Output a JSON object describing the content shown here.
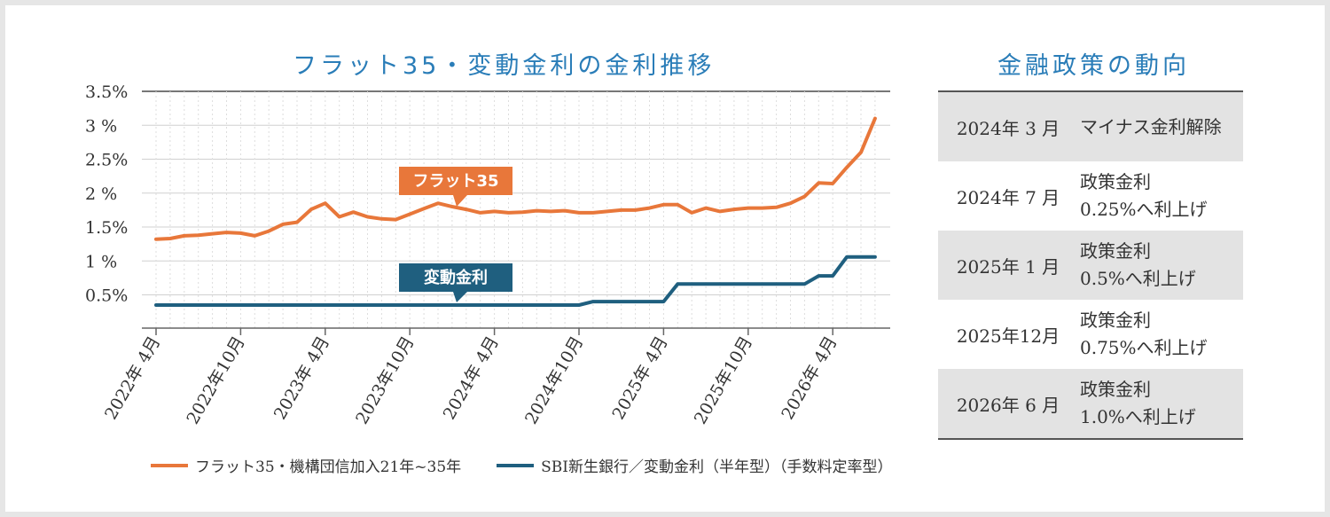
{
  "colors": {
    "flat35": "#e8773a",
    "variable": "#1f5f7f",
    "title": "#2a7db8"
  },
  "chart_data": {
    "type": "line",
    "title": "フラット35・変動金利の金利推移",
    "y_tick_labels": [
      "3.5%",
      "3 %",
      "2.5%",
      "2 %",
      "1.5%",
      "1 %",
      "0.5%"
    ],
    "y_tick_values": [
      3.5,
      3.0,
      2.5,
      2.0,
      1.5,
      1.0,
      0.5
    ],
    "ylim": [
      0.0,
      3.5
    ],
    "x_tick_labels": [
      "2022年 4月",
      "2022年10月",
      "2023年 4月",
      "2023年10月",
      "2024年 4月",
      "2024年10月",
      "2025年 4月",
      "2025年10月",
      "2026年 4月"
    ],
    "grid": true,
    "legend_position": "bottom",
    "x_months": [
      "2022-04",
      "2022-05",
      "2022-06",
      "2022-07",
      "2022-08",
      "2022-09",
      "2022-10",
      "2022-11",
      "2022-12",
      "2023-01",
      "2023-02",
      "2023-03",
      "2023-04",
      "2023-05",
      "2023-06",
      "2023-07",
      "2023-08",
      "2023-09",
      "2023-10",
      "2023-11",
      "2023-12",
      "2024-01",
      "2024-02",
      "2024-03",
      "2024-04",
      "2024-05",
      "2024-06",
      "2024-07",
      "2024-08",
      "2024-09",
      "2024-10",
      "2024-11",
      "2024-12",
      "2025-01",
      "2025-02",
      "2025-03",
      "2025-04",
      "2025-05",
      "2025-06",
      "2025-07",
      "2025-08",
      "2025-09",
      "2025-10",
      "2025-11",
      "2025-12",
      "2026-01",
      "2026-02",
      "2026-03",
      "2026-04",
      "2026-05",
      "2026-06",
      "2026-07"
    ],
    "series": [
      {
        "name": "フラット35・機構団信加入21年~35年",
        "callout": "フラット35",
        "color": "#e8773a",
        "values": [
          1.32,
          1.33,
          1.37,
          1.38,
          1.4,
          1.42,
          1.41,
          1.37,
          1.44,
          1.54,
          1.57,
          1.76,
          1.85,
          1.65,
          1.72,
          1.65,
          1.62,
          1.61,
          1.69,
          1.77,
          1.85,
          1.8,
          1.76,
          1.71,
          1.73,
          1.71,
          1.72,
          1.74,
          1.73,
          1.74,
          1.71,
          1.71,
          1.73,
          1.75,
          1.75,
          1.78,
          1.83,
          1.83,
          1.71,
          1.78,
          1.73,
          1.76,
          1.78,
          1.78,
          1.79,
          1.85,
          1.95,
          2.15,
          2.14,
          2.38,
          2.6,
          3.1
        ]
      },
      {
        "name": "SBI新生銀行／変動金利（半年型）（手数料定率型）",
        "callout": "変動金利",
        "color": "#1f5f7f",
        "values": [
          0.35,
          0.35,
          0.35,
          0.35,
          0.35,
          0.35,
          0.35,
          0.35,
          0.35,
          0.35,
          0.35,
          0.35,
          0.35,
          0.35,
          0.35,
          0.35,
          0.35,
          0.35,
          0.35,
          0.35,
          0.35,
          0.35,
          0.35,
          0.35,
          0.35,
          0.35,
          0.35,
          0.35,
          0.35,
          0.35,
          0.35,
          0.4,
          0.4,
          0.4,
          0.4,
          0.4,
          0.4,
          0.66,
          0.66,
          0.66,
          0.66,
          0.66,
          0.66,
          0.66,
          0.66,
          0.66,
          0.66,
          0.78,
          0.78,
          1.06,
          1.06,
          1.06
        ]
      }
    ]
  },
  "policy_panel": {
    "title": "金融政策の動向",
    "rows": [
      {
        "date": "2024年 3 月",
        "event": "マイナス金利解除"
      },
      {
        "date": "2024年 7 月",
        "event": "政策金利\n0.25%へ利上げ"
      },
      {
        "date": "2025年 1 月",
        "event": "政策金利\n0.5%へ利上げ"
      },
      {
        "date": "2025年12月",
        "event": "政策金利\n0.75%へ利上げ"
      },
      {
        "date": "2026年 6 月",
        "event": "政策金利\n1.0%へ利上げ"
      }
    ]
  }
}
